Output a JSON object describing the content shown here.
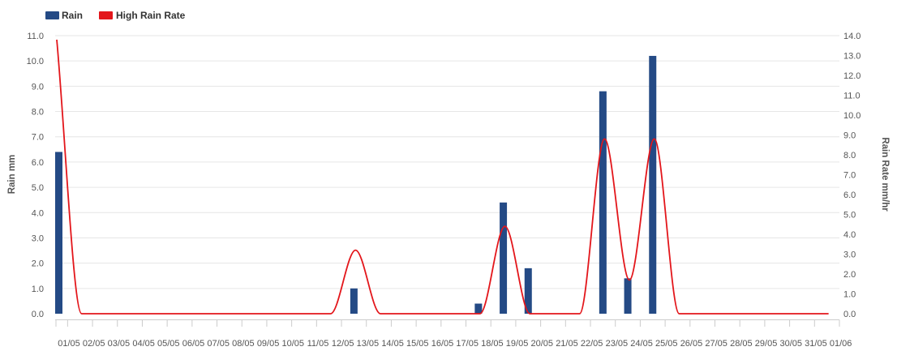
{
  "chart_data": {
    "type": "bar",
    "categories": [
      "01/05",
      "02/05",
      "03/05",
      "04/05",
      "05/05",
      "06/05",
      "07/05",
      "08/05",
      "09/05",
      "10/05",
      "11/05",
      "12/05",
      "13/05",
      "14/05",
      "15/05",
      "16/05",
      "17/05",
      "18/05",
      "19/05",
      "20/05",
      "21/05",
      "22/05",
      "23/05",
      "24/05",
      "25/05",
      "26/05",
      "27/05",
      "28/05",
      "29/05",
      "30/05",
      "31/05",
      "01/06"
    ],
    "series": [
      {
        "name": "Rain",
        "type": "bar",
        "axis": "left",
        "color": "#244a85",
        "values": [
          6.4,
          0,
          0,
          0,
          0,
          0,
          0,
          0,
          0,
          0,
          0,
          0,
          1.0,
          0,
          0,
          0,
          0,
          0.4,
          4.4,
          1.8,
          0,
          0,
          8.8,
          1.4,
          10.2,
          0,
          0,
          0,
          0,
          0,
          0,
          0
        ]
      },
      {
        "name": "High Rain Rate",
        "type": "line",
        "axis": "right",
        "color": "#e3161b",
        "values": [
          13.8,
          0,
          0,
          0,
          0,
          0,
          0,
          0,
          0,
          0,
          0,
          0,
          3.2,
          0,
          0,
          0,
          0,
          0,
          4.4,
          0,
          0,
          0,
          8.8,
          1.7,
          8.8,
          0,
          0,
          0,
          0,
          0,
          0,
          0
        ]
      }
    ],
    "ylabel": "Rain mm",
    "y2label": "Rain Rate mm/hr",
    "ylim": [
      0,
      11
    ],
    "y2lim": [
      0,
      14
    ],
    "y_ticks": [
      "0.0",
      "1.0",
      "2.0",
      "3.0",
      "4.0",
      "5.0",
      "6.0",
      "7.0",
      "8.0",
      "9.0",
      "10.0",
      "11.0"
    ],
    "y2_ticks": [
      "0.0",
      "1.0",
      "2.0",
      "3.0",
      "4.0",
      "5.0",
      "6.0",
      "7.0",
      "8.0",
      "9.0",
      "10.0",
      "11.0",
      "12.0",
      "13.0",
      "14.0"
    ],
    "legend": "top-left",
    "grid": true
  }
}
